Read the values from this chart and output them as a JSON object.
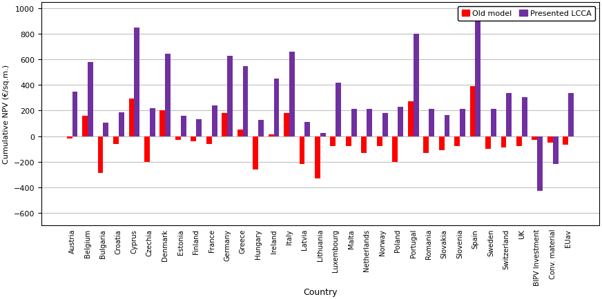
{
  "categories": [
    "Austria",
    "Belgium",
    "Bulgaria",
    "Croatia",
    "Cyprus",
    "Czechia",
    "Denmark",
    "Estonia",
    "Finland",
    "France",
    "Germany",
    "Greece",
    "Hungary",
    "Ireland",
    "Italy",
    "Latvia",
    "Lithuania",
    "Luxembourg",
    "Malta",
    "Netherlands",
    "Norway",
    "Poland",
    "Portugal",
    "Romania",
    "Slovakia",
    "Slovenia",
    "Spain",
    "Sweden",
    "Switzerland",
    "UK",
    "BIPV Investment",
    "Conv. material",
    "EUav"
  ],
  "old_model": [
    -20,
    160,
    -290,
    -60,
    295,
    -200,
    200,
    -30,
    -40,
    -60,
    180,
    50,
    -260,
    15,
    180,
    -220,
    -330,
    -80,
    -80,
    -130,
    -80,
    -200,
    275,
    -130,
    -110,
    -80,
    390,
    -100,
    -90,
    -80,
    -30,
    -50,
    -70
  ],
  "presented_lcca": [
    350,
    580,
    105,
    185,
    850,
    220,
    645,
    160,
    130,
    240,
    630,
    550,
    125,
    450,
    660,
    110,
    25,
    420,
    215,
    215,
    180,
    230,
    805,
    215,
    165,
    215,
    950,
    215,
    340,
    305,
    -430,
    -220,
    340
  ],
  "old_model_color": "#ff0000",
  "presented_lcca_color": "#7030a0",
  "ylabel": "Cumulative NPV (€/sq.m.)",
  "xlabel": "Country",
  "ylim": [
    -700,
    1050
  ],
  "yticks": [
    -600,
    -400,
    -200,
    0,
    200,
    400,
    600,
    800,
    1000
  ],
  "legend_labels": [
    "Old model",
    "Presented LCCA"
  ],
  "bar_width": 0.35,
  "figsize": [
    8.72,
    4.35
  ],
  "dpi": 100,
  "grid_color": "#c0c0c0",
  "background_color": "#ffffff"
}
